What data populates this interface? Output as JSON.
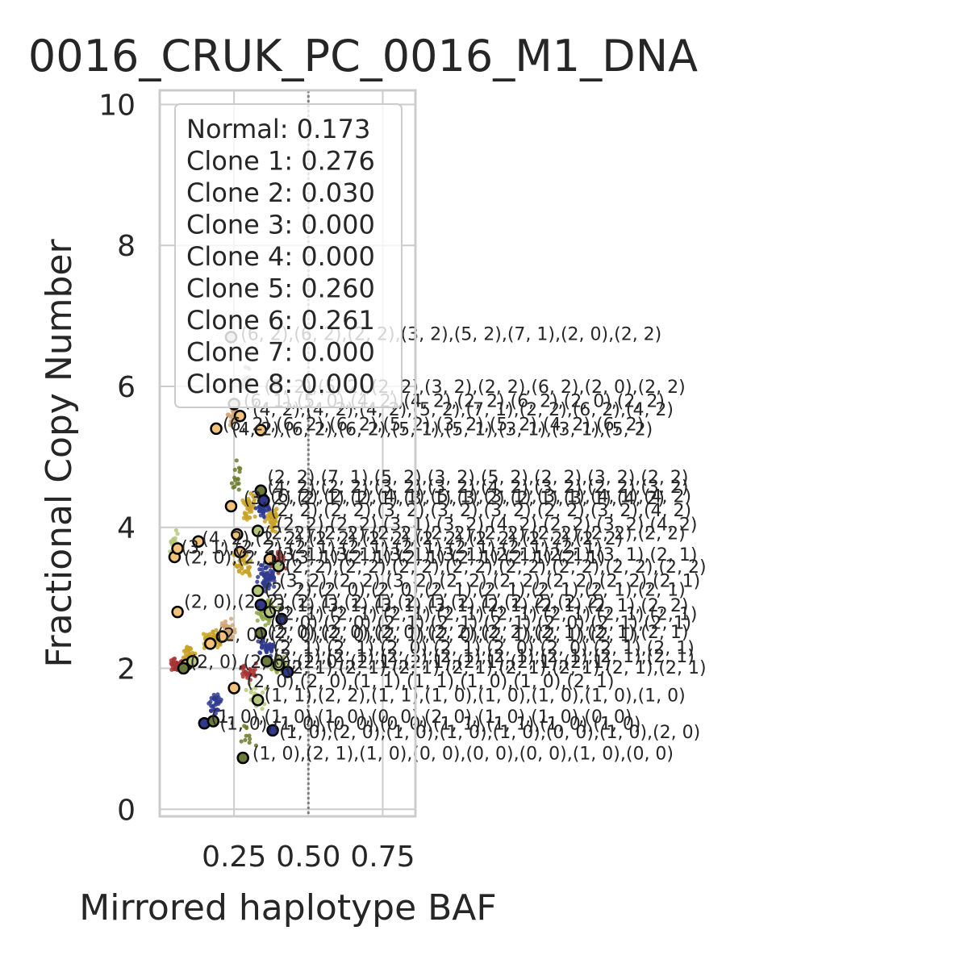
{
  "chart_data": {
    "type": "scatter",
    "title": "0016_CRUK_PC_0016_M1_DNA",
    "xlabel": "Mirrored haplotype BAF",
    "ylabel": "Fractional Copy Number",
    "xlim": [
      0.0,
      0.86
    ],
    "ylim": [
      -0.1,
      10.2
    ],
    "x_ticks": [
      0.25,
      0.5,
      0.75
    ],
    "x_tick_labels": [
      "0.25",
      "0.50",
      "0.75"
    ],
    "y_ticks": [
      0,
      2,
      4,
      6,
      8,
      10
    ],
    "y_tick_labels": [
      "0",
      "2",
      "4",
      "6",
      "8",
      "10"
    ],
    "grid": true,
    "reference_line_x": 0.5,
    "legend_placement": "top-left",
    "legend": [
      "Normal: 0.173",
      "Clone 1: 0.276",
      "Clone 2: 0.030",
      "Clone 3: 0.000",
      "Clone 4: 0.000",
      "Clone 5: 0.260",
      "Clone 6: 0.261",
      "Clone 7: 0.000",
      "Clone 8: 0.000"
    ],
    "bin_colors": [
      "#2f3a8f",
      "#c9a227",
      "#8fa84a",
      "#d4a373",
      "#a83232",
      "#6b7a2a",
      "#b5c77a",
      "#d9b48a",
      "#7a4a6a",
      "#9a9a9a"
    ],
    "bins": [
      {
        "x": 0.05,
        "y": 3.75,
        "n": 30,
        "sx": 0.02,
        "sy": 0.25,
        "c": 6
      },
      {
        "x": 0.06,
        "y": 2.05,
        "n": 40,
        "sx": 0.03,
        "sy": 0.12,
        "c": 4
      },
      {
        "x": 0.1,
        "y": 2.2,
        "n": 40,
        "sx": 0.03,
        "sy": 0.15,
        "c": 1
      },
      {
        "x": 0.18,
        "y": 2.4,
        "n": 60,
        "sx": 0.04,
        "sy": 0.18,
        "c": 1
      },
      {
        "x": 0.23,
        "y": 2.55,
        "n": 40,
        "sx": 0.03,
        "sy": 0.2,
        "c": 3
      },
      {
        "x": 0.28,
        "y": 3.5,
        "n": 40,
        "sx": 0.04,
        "sy": 0.3,
        "c": 1
      },
      {
        "x": 0.3,
        "y": 4.3,
        "n": 40,
        "sx": 0.03,
        "sy": 0.3,
        "c": 1
      },
      {
        "x": 0.35,
        "y": 4.3,
        "n": 60,
        "sx": 0.03,
        "sy": 0.25,
        "c": 0
      },
      {
        "x": 0.38,
        "y": 4.1,
        "n": 40,
        "sx": 0.03,
        "sy": 0.25,
        "c": 1
      },
      {
        "x": 0.36,
        "y": 3.3,
        "n": 60,
        "sx": 0.04,
        "sy": 0.3,
        "c": 0
      },
      {
        "x": 0.4,
        "y": 3.5,
        "n": 40,
        "sx": 0.03,
        "sy": 0.2,
        "c": 4
      },
      {
        "x": 0.36,
        "y": 2.8,
        "n": 60,
        "sx": 0.04,
        "sy": 0.25,
        "c": 2
      },
      {
        "x": 0.4,
        "y": 2.05,
        "n": 70,
        "sx": 0.03,
        "sy": 0.15,
        "c": 2
      },
      {
        "x": 0.36,
        "y": 2.3,
        "n": 40,
        "sx": 0.04,
        "sy": 0.2,
        "c": 0
      },
      {
        "x": 0.3,
        "y": 1.95,
        "n": 30,
        "sx": 0.04,
        "sy": 0.2,
        "c": 4
      },
      {
        "x": 0.19,
        "y": 1.5,
        "n": 30,
        "sx": 0.04,
        "sy": 0.3,
        "c": 0
      },
      {
        "x": 0.25,
        "y": 5.6,
        "n": 20,
        "sx": 0.03,
        "sy": 0.2,
        "c": 3
      },
      {
        "x": 0.29,
        "y": 6.1,
        "n": 20,
        "sx": 0.03,
        "sy": 0.2,
        "c": 9
      },
      {
        "x": 0.26,
        "y": 4.7,
        "n": 15,
        "sx": 0.03,
        "sy": 0.35,
        "c": 5
      },
      {
        "x": 0.3,
        "y": 1.0,
        "n": 10,
        "sx": 0.05,
        "sy": 0.3,
        "c": 5
      },
      {
        "x": 0.33,
        "y": 1.6,
        "n": 20,
        "sx": 0.05,
        "sy": 0.25,
        "c": 6
      }
    ],
    "segments": [
      {
        "x": 0.24,
        "y": 6.7,
        "c": "#bfbfbf"
      },
      {
        "x": 0.25,
        "y": 5.75,
        "c": "#bfbfbf"
      },
      {
        "x": 0.19,
        "y": 5.4,
        "c": "#f2c17a"
      },
      {
        "x": 0.27,
        "y": 5.58,
        "c": "#f2c17a"
      },
      {
        "x": 0.34,
        "y": 5.38,
        "c": "#f2c17a"
      },
      {
        "x": 0.24,
        "y": 4.3,
        "c": "#f2c17a"
      },
      {
        "x": 0.34,
        "y": 4.52,
        "c": "#6a7a3a"
      },
      {
        "x": 0.35,
        "y": 4.38,
        "c": "#2f3a8f"
      },
      {
        "x": 0.13,
        "y": 3.8,
        "c": "#f2c17a"
      },
      {
        "x": 0.05,
        "y": 3.58,
        "c": "#f2c17a"
      },
      {
        "x": 0.06,
        "y": 3.7,
        "c": "#f2c17a"
      },
      {
        "x": 0.26,
        "y": 3.9,
        "c": "#f2c17a"
      },
      {
        "x": 0.27,
        "y": 3.65,
        "c": "#f2c17a"
      },
      {
        "x": 0.33,
        "y": 3.95,
        "c": "#b5c77a"
      },
      {
        "x": 0.37,
        "y": 3.55,
        "c": "#f2c17a"
      },
      {
        "x": 0.4,
        "y": 3.45,
        "c": "#b5c77a"
      },
      {
        "x": 0.33,
        "y": 3.1,
        "c": "#b5c77a"
      },
      {
        "x": 0.34,
        "y": 2.9,
        "c": "#2f3a8f"
      },
      {
        "x": 0.37,
        "y": 2.8,
        "c": "#b5c77a"
      },
      {
        "x": 0.41,
        "y": 2.7,
        "c": "#2f3a8f"
      },
      {
        "x": 0.06,
        "y": 2.8,
        "c": "#f2c17a"
      },
      {
        "x": 0.17,
        "y": 2.35,
        "c": "#f2c17a"
      },
      {
        "x": 0.21,
        "y": 2.45,
        "c": "#f2c17a"
      },
      {
        "x": 0.34,
        "y": 2.5,
        "c": "#6a7a3a"
      },
      {
        "x": 0.09,
        "y": 2.05,
        "c": "#f2c17a"
      },
      {
        "x": 0.11,
        "y": 2.1,
        "c": "#b5c77a"
      },
      {
        "x": 0.08,
        "y": 2.0,
        "c": "#6a7a3a"
      },
      {
        "x": 0.36,
        "y": 2.1,
        "c": "#6a7a3a"
      },
      {
        "x": 0.4,
        "y": 2.05,
        "c": "#b5c77a"
      },
      {
        "x": 0.43,
        "y": 1.95,
        "c": "#2f3a8f"
      },
      {
        "x": 0.25,
        "y": 1.72,
        "c": "#f2c17a"
      },
      {
        "x": 0.33,
        "y": 1.55,
        "c": "#b5c77a"
      },
      {
        "x": 0.15,
        "y": 1.22,
        "c": "#2f3a8f"
      },
      {
        "x": 0.18,
        "y": 1.25,
        "c": "#6a7a3a"
      },
      {
        "x": 0.38,
        "y": 1.12,
        "c": "#2f3a8f"
      },
      {
        "x": 0.28,
        "y": 0.73,
        "c": "#6a7a3a"
      }
    ],
    "annotations": [
      {
        "x": 0.25,
        "y": 6.75,
        "text": "(6, 2),(6, 2),(2, 2),(3, 2),(5, 2),(7, 1),(2, 0),(2, 2)"
      },
      {
        "x": 0.33,
        "y": 6.0,
        "text": "(5, 2),(5, 2),(2, 2),(3, 2),(2, 2),(6, 2),(2, 0),(2, 2)"
      },
      {
        "x": 0.26,
        "y": 5.8,
        "text": "(6, 1),(5, 0),(4, 2),(4, 2),(2, 2),(6, 2),(2, 0),(2, 2)"
      },
      {
        "x": 0.29,
        "y": 5.68,
        "text": "(4, 2),(4, 2),(4, 2),(5, 2),(7, 1),(2, 2),(6, 2),(4, 2)"
      },
      {
        "x": 0.19,
        "y": 5.47,
        "text": "(6, 2),(6, 2),(6, 2),(5, 2),(3, 2),(5, 2),(4, 2),(6, 2)"
      },
      {
        "x": 0.22,
        "y": 5.4,
        "text": "(4, 2),(6, 2),(6, 2),(5, 1),(5, 1),(3, 1),(3, 1),(5, 2)"
      },
      {
        "x": 0.34,
        "y": 4.72,
        "text": "(2, 2),(7, 1),(5, 2),(3, 2),(5, 2),(2, 2),(3, 2),(2, 2)"
      },
      {
        "x": 0.34,
        "y": 4.58,
        "text": "(4, 2),(2, 2),(3, 2),(3, 2),(4, 2),(3, 2),(2, 2),(3, 2)"
      },
      {
        "x": 0.35,
        "y": 4.45,
        "text": "(6, 2),(2, 1),(4, 1),(5, 1),(3, 1),(3, 1),(4, 1),(4, 2)"
      },
      {
        "x": 0.26,
        "y": 4.42,
        "text": "(3, 2),(2, 1),(2, 1),(3, 1),(3, 2),(2, 1),(3, 1),(4, 2)"
      },
      {
        "x": 0.35,
        "y": 4.25,
        "text": "(2, 2),(2, 2),(3, 2),(3, 2),(3, 2),(2, 2),(3, 2),(4, 2)"
      },
      {
        "x": 0.37,
        "y": 4.05,
        "text": "(2, 2),(2, 2),(3, 1),(3, 2),(4, 2),(2, 2),(3, 2),(4, 2)"
      },
      {
        "x": 0.33,
        "y": 3.92,
        "text": "(2, 2),(2, 2),(2, 2),(2, 2),(2, 2),(2, 2),(2, 2),(2, 2)"
      },
      {
        "x": 0.12,
        "y": 3.85,
        "text": "(4, 2),(2, 2),(2, 2),(2, 2),(2, 2),(2, 2),(2, 2),(2, 2)"
      },
      {
        "x": 0.05,
        "y": 3.72,
        "text": "(3, 1),(2, 2),(2, 1),(2, 1),(2, 1),(2, 1),(2, 1),(2, 1)"
      },
      {
        "x": 0.06,
        "y": 3.58,
        "text": "(2, 0),(2, 1),(3, 1),(2, 1),(2, 1),(2, 1),(2, 1),(2, 1)"
      },
      {
        "x": 0.37,
        "y": 3.62,
        "text": "(3, 1),(3, 1),(3, 1),(3, 1),(2, 1),(2, 1),(3, 1),(2, 1)"
      },
      {
        "x": 0.4,
        "y": 3.45,
        "text": "(2, 2),(2, 2),(2, 2),(2, 2),(2, 2),(2, 2),(2, 2),(2, 2)"
      },
      {
        "x": 0.38,
        "y": 3.25,
        "text": "(3, 2),(2, 2),(3, 2),(2, 2),(2, 2),(2, 2),(2, 2),(2, 1)"
      },
      {
        "x": 0.33,
        "y": 3.12,
        "text": "(2, 2),(2, 0),(2, 0),(2, 1),(2, 1),(2, 1),(2, 1),(2, 1)"
      },
      {
        "x": 0.06,
        "y": 2.95,
        "text": "(2, 0),(2, 2),(2, 1),(2, 1),(2, 1),(2, 1),(2, 2),(2, 2)"
      },
      {
        "x": 0.34,
        "y": 2.9,
        "text": "(3, 1),(3, 1),(3, 1),(3, 1),(2, 1),(2, 1),(2, 1),(2, 2)"
      },
      {
        "x": 0.37,
        "y": 2.78,
        "text": "(2, 1),(2, 1),(2, 1),(2, 1),(2, 1),(2, 1),(2, 1),(2, 1)"
      },
      {
        "x": 0.35,
        "y": 2.65,
        "text": "(2, 0),(2, 0),(2, 1),(2, 1),(2, 1),(2, 0),(2, 1),(2, 1)"
      },
      {
        "x": 0.17,
        "y": 2.48,
        "text": "(2, 0),(2, 0),(2, 0),(2, 1),(2, 0),(2, 1),(2, 1),(2, 1)"
      },
      {
        "x": 0.34,
        "y": 2.52,
        "text": "(2, 0),(2, 0),(2, 0),(2, 2),(2, 2),(2, 1),(2, 1),(2, 1)"
      },
      {
        "x": 0.36,
        "y": 2.3,
        "text": "(2, 1),(2, 1),(2, 0),(2, 1),(2, 0),(2, 0),(2, 1),(2, 1)"
      },
      {
        "x": 0.36,
        "y": 2.18,
        "text": "(2, 1),(2, 1),(2, 1),(2, 1),(2, 1),(2, 1),(2, 1),(2, 1)"
      },
      {
        "x": 0.08,
        "y": 2.1,
        "text": "(2, 0),(2, 0),(2, 0),(2, 1),(2, 1),(2, 1),(2, 1),(2, 1)"
      },
      {
        "x": 0.4,
        "y": 2.02,
        "text": "(2, 1),(2, 1),(2, 1),(2, 1),(2, 1),(2, 1),(2, 1),(2, 1)"
      },
      {
        "x": 0.27,
        "y": 1.82,
        "text": "(2, 0),(2, 0),(1, 1),(1, 1),(1, 0),(1, 0),(2, 1)"
      },
      {
        "x": 0.33,
        "y": 1.62,
        "text": "(1, 1),(2, 2),(1, 1),(1, 0),(1, 0),(1, 0),(1, 0),(1, 0)"
      },
      {
        "x": 0.15,
        "y": 1.32,
        "text": "(1, 0),(1, 0),(1, 0),(0, 0),(2, 0),(1, 0),(1, 0),(0, 0)"
      },
      {
        "x": 0.18,
        "y": 1.22,
        "text": "(1, 0),(1, 0),(0, 0),(0, 0),(1, 1),(1, 1),(1, 0),(1, 0)"
      },
      {
        "x": 0.38,
        "y": 1.1,
        "text": "(1, 0),(2, 0),(1, 0),(1, 0),(1, 0),(0, 0),(1, 0),(2, 0)"
      },
      {
        "x": 0.29,
        "y": 0.8,
        "text": "(1, 0),(2, 1),(1, 0),(0, 0),(0, 0),(0, 0),(1, 0),(0, 0)"
      }
    ]
  }
}
